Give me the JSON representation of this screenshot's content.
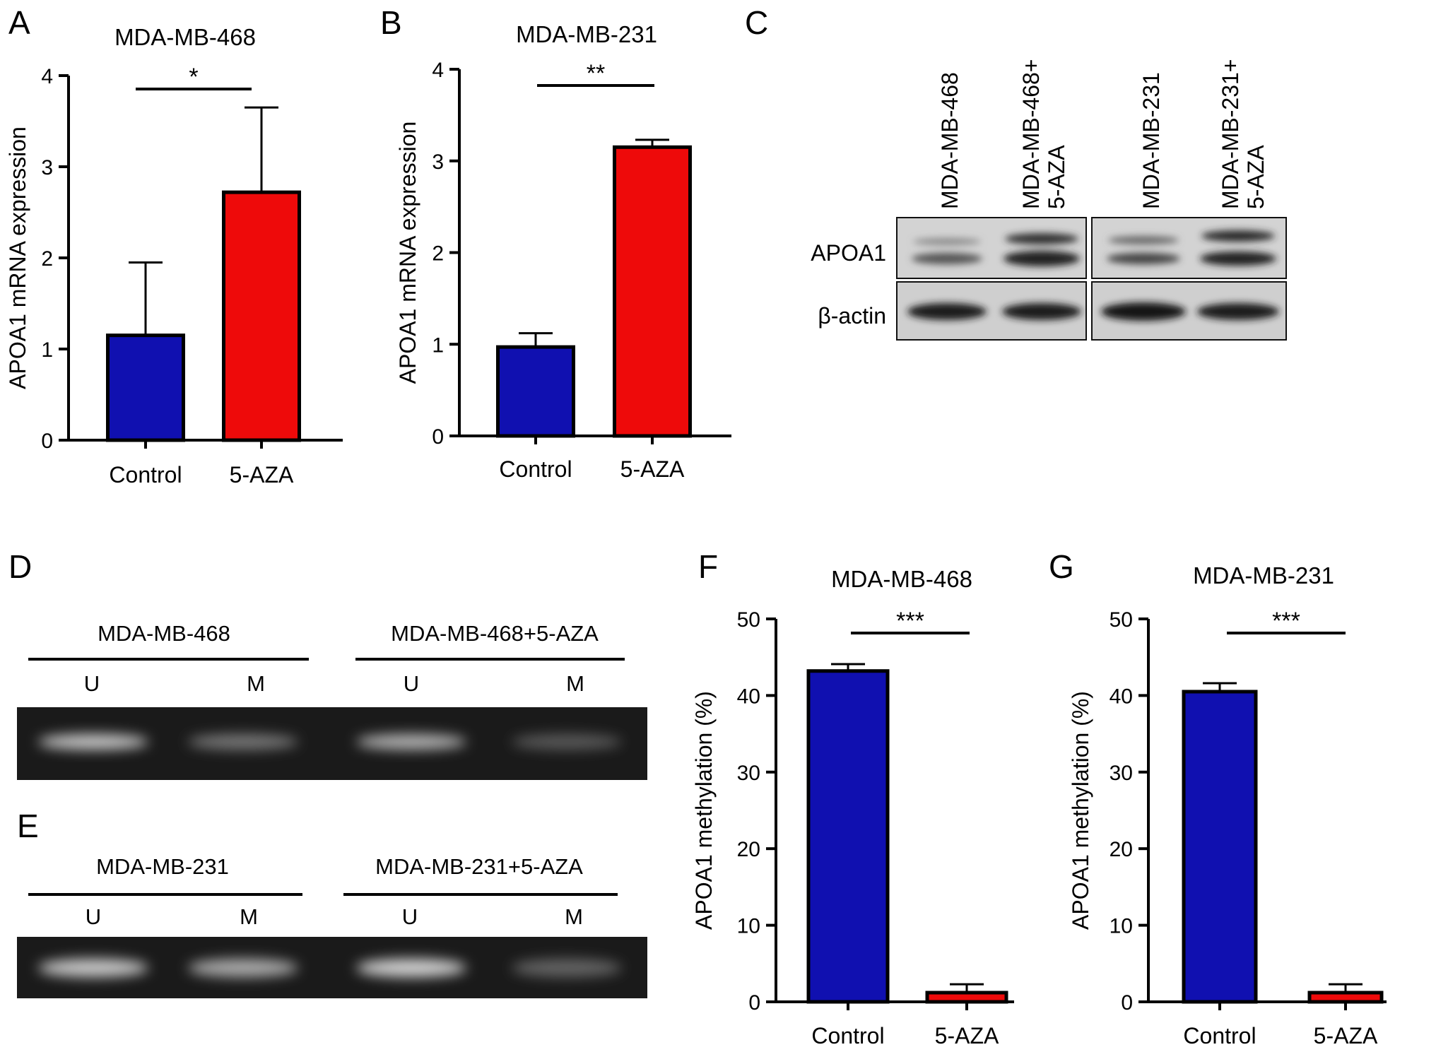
{
  "panels": {
    "A": "A",
    "B": "B",
    "C": "C",
    "D": "D",
    "E": "E",
    "F": "F",
    "G": "G"
  },
  "chart_data": [
    {
      "panel": "A",
      "type": "bar",
      "title": "MDA-MB-468",
      "ylabel": "APOA1 mRNA expression",
      "categories": [
        "Control",
        "5-AZA"
      ],
      "values": [
        1.15,
        2.72
      ],
      "errors": [
        0.8,
        0.93
      ],
      "colors": [
        "#1010b0",
        "#ee0a0a"
      ],
      "ylim": [
        0,
        4
      ],
      "yticks": [
        "0",
        "1",
        "2",
        "3",
        "4"
      ],
      "significance": "*"
    },
    {
      "panel": "B",
      "type": "bar",
      "title": "MDA-MB-231",
      "ylabel": "APOA1 mRNA expression",
      "categories": [
        "Control",
        "5-AZA"
      ],
      "values": [
        0.97,
        3.15
      ],
      "errors": [
        0.15,
        0.08
      ],
      "colors": [
        "#1010b0",
        "#ee0a0a"
      ],
      "ylim": [
        0,
        4
      ],
      "yticks": [
        "0",
        "1",
        "2",
        "3",
        "4"
      ],
      "significance": "**"
    },
    {
      "panel": "F",
      "type": "bar",
      "title": "MDA-MB-468",
      "ylabel": "APOA1 methylation (%)",
      "categories": [
        "Control",
        "5-AZA"
      ],
      "values": [
        43.2,
        1.2
      ],
      "errors": [
        0.9,
        1.1
      ],
      "colors": [
        "#1010b0",
        "#ee0a0a"
      ],
      "ylim": [
        0,
        50
      ],
      "yticks": [
        "0",
        "10",
        "20",
        "30",
        "40",
        "50"
      ],
      "significance": "***"
    },
    {
      "panel": "G",
      "type": "bar",
      "title": "MDA-MB-231",
      "ylabel": "APOA1 methylation (%)",
      "categories": [
        "Control",
        "5-AZA"
      ],
      "values": [
        40.5,
        1.2
      ],
      "errors": [
        1.1,
        1.1
      ],
      "colors": [
        "#1010b0",
        "#ee0a0a"
      ],
      "ylim": [
        0,
        50
      ],
      "yticks": [
        "0",
        "10",
        "20",
        "30",
        "40",
        "50"
      ],
      "significance": "***"
    }
  ],
  "western_blot": {
    "lanes": [
      "MDA-MB-468",
      "MDA-MB-468+\n5-AZA",
      "MDA-MB-231",
      "MDA-MB-231+\n5-AZA"
    ],
    "rows": [
      "APOA1",
      "β-actin"
    ]
  },
  "gel_d": {
    "groups": [
      "MDA-MB-468",
      "MDA-MB-468+5-AZA"
    ],
    "lanes": [
      "U",
      "M",
      "U",
      "M"
    ],
    "intensities": [
      0.85,
      0.45,
      0.75,
      0.3
    ]
  },
  "gel_e": {
    "groups": [
      "MDA-MB-231",
      "MDA-MB-231+5-AZA"
    ],
    "lanes": [
      "U",
      "M",
      "U",
      "M"
    ],
    "intensities": [
      0.85,
      0.7,
      0.9,
      0.35
    ]
  }
}
